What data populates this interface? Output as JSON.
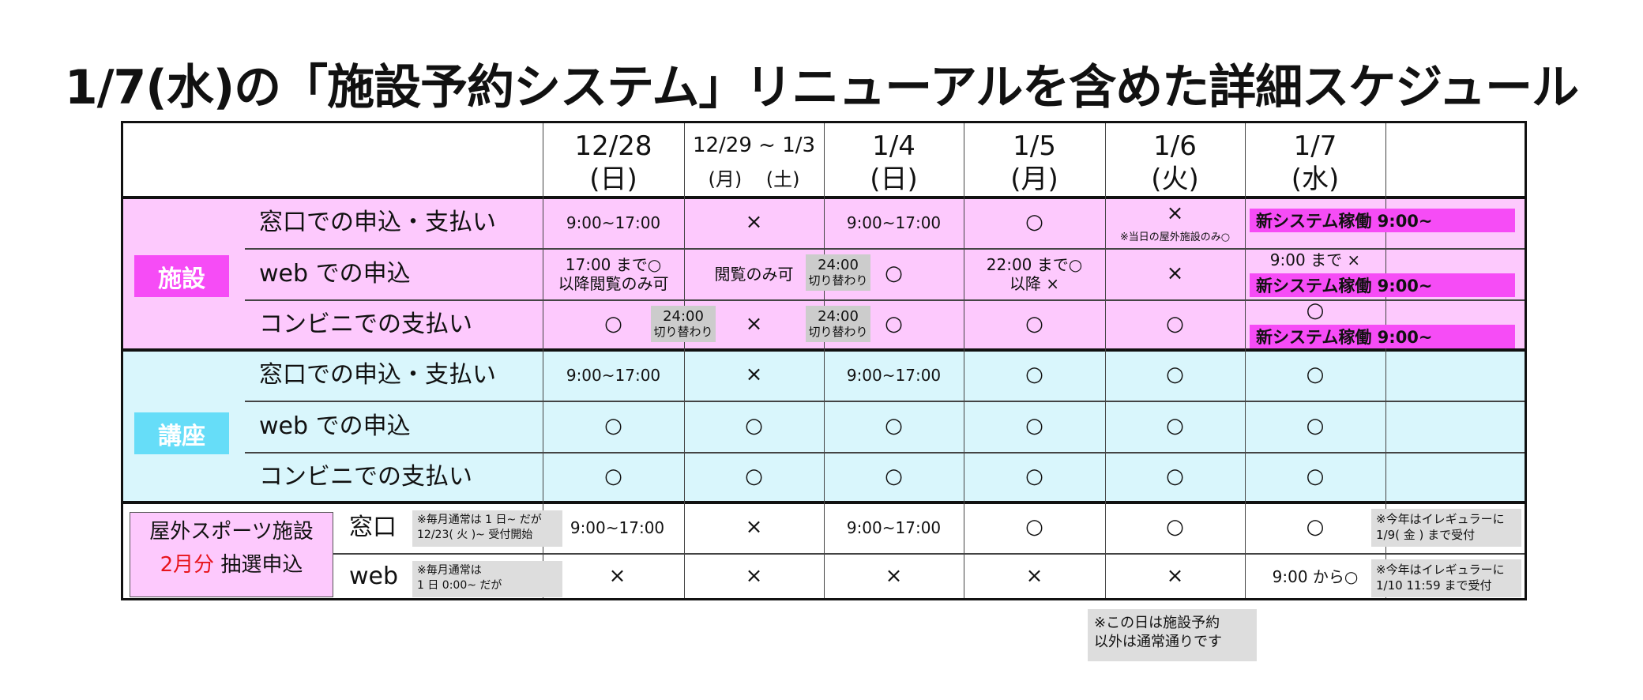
{
  "title": "1/7(水)の「施設予約システム」リニューアルを含めた詳細スケジュール",
  "headers": [
    {
      "date": "12/28",
      "day": "(日)"
    },
    {
      "date": "12/29 ~ 1/3",
      "day": "(月)    (土)"
    },
    {
      "date": "1/4",
      "day": "(日)"
    },
    {
      "date": "1/5",
      "day": "(月)"
    },
    {
      "date": "1/6",
      "day": "(火)"
    },
    {
      "date": "1/7",
      "day": "(水)"
    }
  ],
  "colors": {
    "shisetsu_bg": "#fdc9fd",
    "kouza_bg": "#d9f6fc",
    "shisetsu_label": "#f64cf6",
    "kouza_label": "#66ddf8",
    "new_system": "#f64cf6",
    "red": "#e8141c"
  },
  "shisetsu": {
    "label": "施設",
    "rows": [
      {
        "label": "窓口での申込・支払い",
        "cells": [
          "9:00~17:00",
          "×",
          "9:00~17:00",
          "○",
          "×",
          "新システム稼働 9:00~"
        ],
        "note_1_6": "※当日の屋外施設のみ○"
      },
      {
        "label": "web での申込",
        "cells": [
          "17:00 まで○\n以降閲覧のみ可",
          "閲覧のみ可",
          "○",
          "22:00 まで○\n以降 ×",
          "×",
          "9:00 まで ×"
        ],
        "new_system": "新システム稼働 9:00~"
      },
      {
        "label": "コンビニでの支払い",
        "cells": [
          "○",
          "×",
          "○",
          "○",
          "○",
          "○"
        ],
        "new_system": "新システム稼働 9:00~"
      }
    ],
    "switch_main": "24:00",
    "switch_sub": "切り替わり"
  },
  "kouza": {
    "label": "講座",
    "rows": [
      {
        "label": "窓口での申込・支払い",
        "cells": [
          "9:00~17:00",
          "×",
          "9:00~17:00",
          "○",
          "○",
          "○"
        ]
      },
      {
        "label": "web での申込",
        "cells": [
          "○",
          "○",
          "○",
          "○",
          "○",
          "○"
        ]
      },
      {
        "label": "コンビニでの支払い",
        "cells": [
          "○",
          "○",
          "○",
          "○",
          "○",
          "○"
        ]
      }
    ]
  },
  "outdoor": {
    "label1": "屋外スポーツ施設",
    "label_red": "2月分",
    "label2": "抽選申込",
    "rows": [
      {
        "label": "窓口",
        "note": "※毎月通常は 1 日~ だが\n12/23( 火 )~ 受付開始",
        "cells": [
          "9:00~17:00",
          "×",
          "9:00~17:00",
          "○",
          "○",
          "○"
        ],
        "extra": "※今年はイレギュラーに\n1/9( 金 ) まで受付"
      },
      {
        "label": "web",
        "note": "※毎月通常は\n1 日 0:00~ だが",
        "cells": [
          "×",
          "×",
          "×",
          "×",
          "×",
          "9:00 から○"
        ],
        "extra": "※今年はイレギュラーに\n1/10 11:59 まで受付"
      }
    ]
  },
  "footnote": "※この日は施設予約\n以外は通常通りです"
}
